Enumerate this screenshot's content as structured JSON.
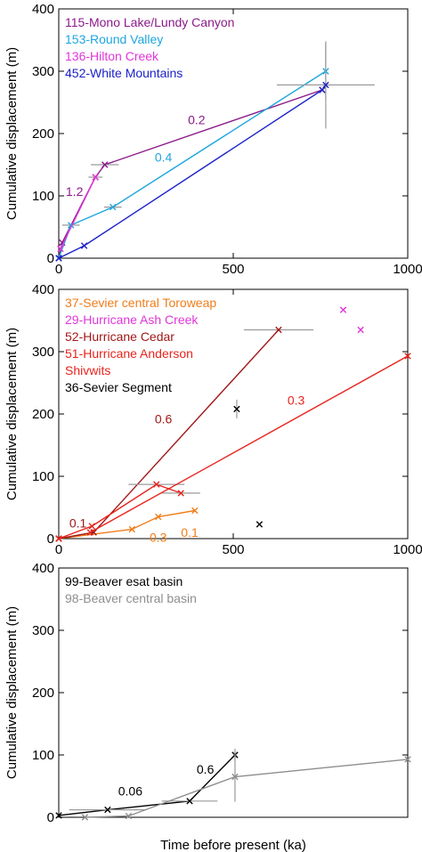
{
  "chart_data": [
    {
      "type": "line",
      "panel": "top",
      "xlim": [
        0,
        1000
      ],
      "ylim": [
        0,
        400
      ],
      "xticks": [
        0,
        500,
        1000
      ],
      "yticks": [
        0,
        100,
        200,
        300,
        400
      ],
      "xticklabels": [
        "0",
        "500",
        "1000"
      ],
      "yticklabels": [
        "0",
        "100",
        "200",
        "300",
        "400"
      ],
      "xlabel": "",
      "ylabel": "Cumulative displacement (m)",
      "legend_position": "top-left",
      "series": [
        {
          "name": "115-Mono Lake/Lundy Canyon",
          "color": "#8b1a89",
          "x": [
            0,
            10,
            105,
            132,
            755
          ],
          "y": [
            0,
            25,
            130,
            150,
            270
          ],
          "xerr": [
            0,
            0,
            20,
            40,
            0
          ],
          "yerr": [
            0,
            0,
            0,
            0,
            0
          ]
        },
        {
          "name": "153-Round Valley",
          "color": "#1ea6de",
          "x": [
            0,
            35,
            155,
            765
          ],
          "y": [
            0,
            53,
            82,
            300
          ],
          "xerr": [
            0,
            25,
            25,
            0
          ],
          "yerr": [
            0,
            0,
            0,
            45
          ]
        },
        {
          "name": "136-Hilton Creek",
          "color": "#e036d8",
          "x": [
            5,
            105
          ],
          "y": [
            15,
            130
          ],
          "xerr": [
            0,
            0
          ],
          "yerr": [
            0,
            0
          ]
        },
        {
          "name": "452-White Mountains",
          "color": "#1c22c8",
          "x": [
            0,
            73,
            755,
            765
          ],
          "y": [
            0,
            20,
            270,
            278
          ],
          "xerr": [
            0,
            0,
            0,
            140
          ],
          "yerr": [
            0,
            0,
            0,
            70
          ]
        }
      ],
      "annotations": [
        {
          "text": "0.2",
          "x": 395,
          "y": 215,
          "color": "#8b1a89"
        },
        {
          "text": "0.4",
          "x": 300,
          "y": 155,
          "color": "#1ea6de"
        },
        {
          "text": "1.2",
          "x": 45,
          "y": 100,
          "color": "#8b1a89"
        }
      ]
    },
    {
      "type": "line",
      "panel": "middle",
      "xlim": [
        0,
        1000
      ],
      "ylim": [
        0,
        400
      ],
      "xticks": [
        0,
        500,
        1000
      ],
      "yticks": [
        0,
        100,
        200,
        300,
        400
      ],
      "xticklabels": [
        "0",
        "500",
        "1000"
      ],
      "yticklabels": [
        "0",
        "100",
        "200",
        "300",
        "400"
      ],
      "xlabel": "",
      "ylabel": "Cumulative displacement (m)",
      "legend_position": "top-left",
      "series": [
        {
          "name": "37-Sevier central Toroweap",
          "color": "#f07d1a",
          "x": [
            0,
            210,
            285,
            390
          ],
          "y": [
            0,
            15,
            35,
            45
          ],
          "xerr": [
            0,
            0,
            0,
            0
          ],
          "yerr": [
            0,
            0,
            0,
            0
          ]
        },
        {
          "name": "29-Hurricane Ash Creek",
          "color": "#e036d8",
          "x": [
            815,
            865
          ],
          "y": [
            367,
            335
          ],
          "xerr": [
            0,
            0
          ],
          "yerr": [
            0,
            0
          ]
        },
        {
          "name": "52-Hurricane Cedar",
          "color": "#a01818",
          "x": [
            0,
            100,
            630
          ],
          "y": [
            0,
            10,
            335
          ],
          "xerr": [
            0,
            0,
            100
          ],
          "yerr": [
            0,
            0,
            0
          ]
        },
        {
          "name": "51-Hurricane Anderson",
          "color": "#e8231c",
          "x": [
            0,
            95,
            280,
            350
          ],
          "y": [
            0,
            20,
            87,
            73
          ],
          "xerr": [
            0,
            0,
            80,
            55
          ],
          "yerr": [
            0,
            0,
            0,
            0
          ]
        },
        {
          "name": "Shivwits",
          "color": "#e8231c",
          "x": [
            90,
            1000
          ],
          "y": [
            10,
            293
          ],
          "xerr": [
            0,
            0
          ],
          "yerr": [
            0,
            0
          ]
        },
        {
          "name": "36-Sevier Segment",
          "color": "#000000",
          "x": [
            510,
            575
          ],
          "y": [
            208,
            23
          ],
          "xerr": [
            0,
            0
          ],
          "yerr": [
            15,
            0
          ]
        }
      ],
      "annotations": [
        {
          "text": "0.6",
          "x": 300,
          "y": 185,
          "color": "#a01818"
        },
        {
          "text": "0.3",
          "x": 680,
          "y": 215,
          "color": "#e8231c"
        },
        {
          "text": "0.1",
          "x": 55,
          "y": 18,
          "color": "#a01818"
        },
        {
          "text": "0.3",
          "x": 285,
          "y": -5,
          "color": "#f07d1a"
        },
        {
          "text": "0.1",
          "x": 375,
          "y": 3,
          "color": "#f07d1a"
        }
      ]
    },
    {
      "type": "line",
      "panel": "bottom",
      "xlim": [
        0,
        1000
      ],
      "ylim": [
        0,
        400
      ],
      "xticks": [],
      "yticks": [
        0,
        100,
        200,
        300,
        400
      ],
      "xticklabels": [],
      "yticklabels": [
        "0",
        "100",
        "200",
        "300",
        "400"
      ],
      "xlabel": "Time before present (ka)",
      "ylabel": "Cumulative displacement (m)",
      "legend_position": "top-left",
      "series": [
        {
          "name": "99-Beaver esat basin",
          "color": "#000000",
          "x": [
            0,
            140,
            375,
            505
          ],
          "y": [
            3,
            12,
            26,
            100
          ],
          "xerr": [
            0,
            110,
            80,
            0
          ],
          "yerr": [
            0,
            0,
            0,
            10
          ]
        },
        {
          "name": "98-Beaver central basin",
          "color": "#8e8e8e",
          "x": [
            75,
            200,
            505,
            1000
          ],
          "y": [
            0,
            2,
            65,
            93
          ],
          "xerr": [
            0,
            0,
            0,
            0
          ],
          "yerr": [
            0,
            0,
            40,
            0
          ]
        }
      ],
      "annotations": [
        {
          "text": "0.6",
          "x": 420,
          "y": 70,
          "color": "#000000"
        },
        {
          "text": "0.06",
          "x": 205,
          "y": 35,
          "color": "#000000"
        }
      ]
    }
  ]
}
